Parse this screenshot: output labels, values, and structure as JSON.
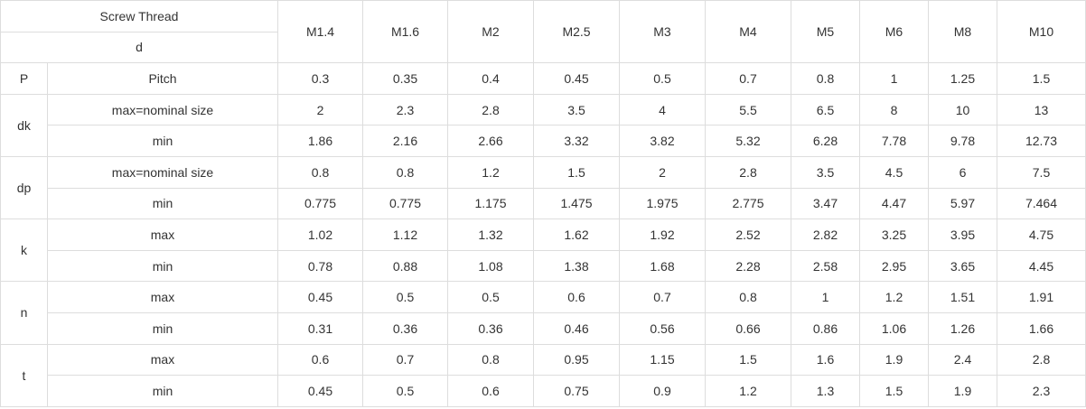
{
  "table": {
    "header_label": "Screw Thread",
    "header_sub": "d",
    "sizes": [
      "M1.4",
      "M1.6",
      "M2",
      "M2.5",
      "M3",
      "M4",
      "M5",
      "M6",
      "M8",
      "M10"
    ],
    "groups": [
      {
        "symbol": "P",
        "rows": [
          {
            "label": "Pitch",
            "values": [
              "0.3",
              "0.35",
              "0.4",
              "0.45",
              "0.5",
              "0.7",
              "0.8",
              "1",
              "1.25",
              "1.5"
            ]
          }
        ]
      },
      {
        "symbol": "dk",
        "rows": [
          {
            "label": "max=nominal size",
            "values": [
              "2",
              "2.3",
              "2.8",
              "3.5",
              "4",
              "5.5",
              "6.5",
              "8",
              "10",
              "13"
            ]
          },
          {
            "label": "min",
            "values": [
              "1.86",
              "2.16",
              "2.66",
              "3.32",
              "3.82",
              "5.32",
              "6.28",
              "7.78",
              "9.78",
              "12.73"
            ]
          }
        ]
      },
      {
        "symbol": "dp",
        "rows": [
          {
            "label": "max=nominal size",
            "values": [
              "0.8",
              "0.8",
              "1.2",
              "1.5",
              "2",
              "2.8",
              "3.5",
              "4.5",
              "6",
              "7.5"
            ]
          },
          {
            "label": "min",
            "values": [
              "0.775",
              "0.775",
              "1.175",
              "1.475",
              "1.975",
              "2.775",
              "3.47",
              "4.47",
              "5.97",
              "7.464"
            ]
          }
        ]
      },
      {
        "symbol": "k",
        "rows": [
          {
            "label": "max",
            "values": [
              "1.02",
              "1.12",
              "1.32",
              "1.62",
              "1.92",
              "2.52",
              "2.82",
              "3.25",
              "3.95",
              "4.75"
            ]
          },
          {
            "label": "min",
            "values": [
              "0.78",
              "0.88",
              "1.08",
              "1.38",
              "1.68",
              "2.28",
              "2.58",
              "2.95",
              "3.65",
              "4.45"
            ]
          }
        ]
      },
      {
        "symbol": "n",
        "rows": [
          {
            "label": "max",
            "values": [
              "0.45",
              "0.5",
              "0.5",
              "0.6",
              "0.7",
              "0.8",
              "1",
              "1.2",
              "1.51",
              "1.91"
            ]
          },
          {
            "label": "min",
            "values": [
              "0.31",
              "0.36",
              "0.36",
              "0.46",
              "0.56",
              "0.66",
              "0.86",
              "1.06",
              "1.26",
              "1.66"
            ]
          }
        ]
      },
      {
        "symbol": "t",
        "rows": [
          {
            "label": "max",
            "values": [
              "0.6",
              "0.7",
              "0.8",
              "0.95",
              "1.15",
              "1.5",
              "1.6",
              "1.9",
              "2.4",
              "2.8"
            ]
          },
          {
            "label": "min",
            "values": [
              "0.45",
              "0.5",
              "0.6",
              "0.75",
              "0.9",
              "1.2",
              "1.3",
              "1.5",
              "1.9",
              "2.3"
            ]
          }
        ]
      }
    ]
  }
}
